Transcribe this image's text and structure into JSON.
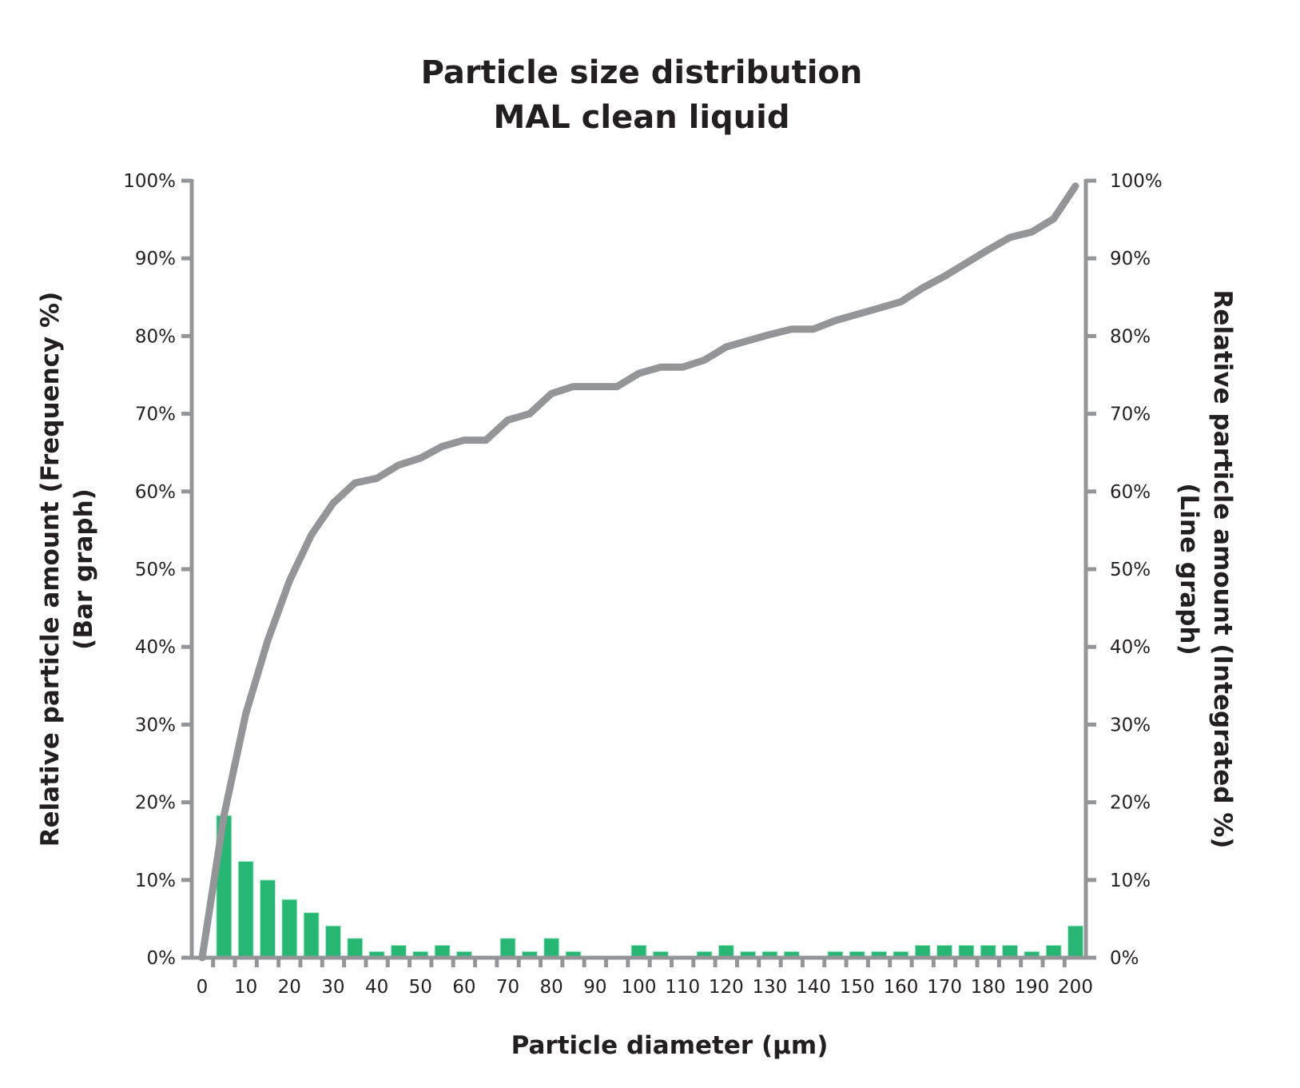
{
  "chart_data": {
    "type": "bar+line",
    "title": [
      "Particle size distribution",
      "MAL clean liquid"
    ],
    "xlabel": "Particle diameter (µm)",
    "ylabel_left": [
      "Relative particle amount (Frequency %)",
      "(Bar graph)"
    ],
    "ylabel_right": [
      "Relative particle amount (Integrated %)",
      "(Line graph)"
    ],
    "categories": [
      0,
      5,
      10,
      15,
      20,
      25,
      30,
      35,
      40,
      45,
      50,
      55,
      60,
      65,
      70,
      75,
      80,
      85,
      90,
      95,
      100,
      105,
      110,
      115,
      120,
      125,
      130,
      135,
      140,
      145,
      150,
      155,
      160,
      165,
      170,
      175,
      180,
      185,
      190,
      195,
      200
    ],
    "x_tick_labels": [
      "0",
      "10",
      "20",
      "30",
      "40",
      "50",
      "60",
      "70",
      "80",
      "90",
      "100",
      "110",
      "120",
      "130",
      "140",
      "150",
      "160",
      "170",
      "180",
      "190",
      "200"
    ],
    "y_tick_labels": [
      "0%",
      "10%",
      "20%",
      "30%",
      "40%",
      "50%",
      "60%",
      "70%",
      "80%",
      "90%",
      "100%"
    ],
    "ylim": [
      0,
      100
    ],
    "grid": false,
    "series": [
      {
        "type": "bar",
        "axis": "left",
        "color": "#27b673",
        "values": [
          0,
          18.3,
          12.4,
          10,
          7.5,
          5.8,
          4.1,
          2.5,
          0.8,
          1.6,
          0.8,
          1.6,
          0.8,
          0,
          2.5,
          0.8,
          2.5,
          0.8,
          0,
          0,
          1.6,
          0.8,
          0,
          0.8,
          1.6,
          0.8,
          0.8,
          0.8,
          0,
          0.8,
          0.8,
          0.8,
          0.8,
          1.6,
          1.6,
          1.6,
          1.6,
          1.6,
          0.8,
          1.6,
          4.1
        ]
      },
      {
        "type": "line",
        "axis": "right",
        "color": "#939598",
        "values": [
          0,
          18.3,
          31.4,
          40.8,
          48.5,
          54.4,
          58.5,
          61.1,
          61.7,
          63.4,
          64.3,
          65.8,
          66.6,
          66.6,
          69.2,
          70,
          72.6,
          73.5,
          73.5,
          73.5,
          75.2,
          76,
          76,
          76.9,
          78.6,
          79.4,
          80.2,
          80.9,
          80.9,
          82,
          82.8,
          83.6,
          84.4,
          86.2,
          87.7,
          89.4,
          91.1,
          92.7,
          93.4,
          95.1,
          99.3
        ]
      }
    ],
    "axis_color": "#939598"
  }
}
